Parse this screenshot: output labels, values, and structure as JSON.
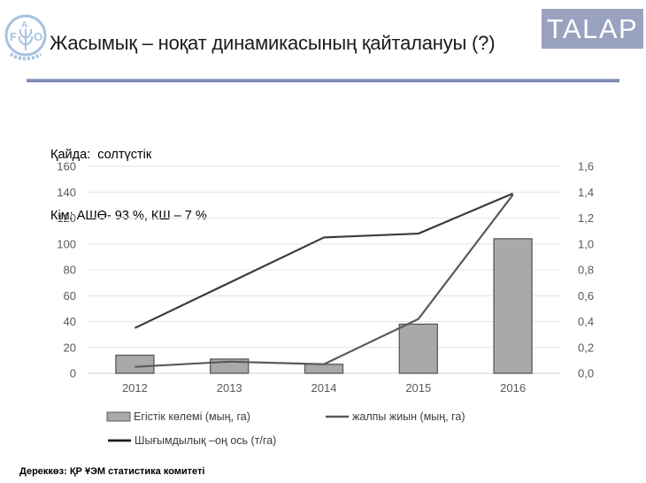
{
  "header": {
    "title": "Жасымық – ноқат динамикасының қайталануы (?)",
    "badge_label": "TALAP",
    "badge_color": "#99a3c0",
    "divider_color": "#7482b4"
  },
  "subtitle": {
    "line1": "Қайда:  солтүстік",
    "line2": "Кім: АШӨ- 93 %, КШ – 7 %"
  },
  "chart_data": {
    "type": "combo-bar-line",
    "categories": [
      "2012",
      "2013",
      "2014",
      "2015",
      "2016"
    ],
    "series": [
      {
        "name": "Егістік көлемі (мың, га)",
        "type": "bar",
        "axis": "left",
        "values": [
          14,
          11,
          7,
          38,
          104
        ],
        "color": "#aba8a8",
        "border_color": "#595959"
      },
      {
        "name": "жалпы жиын (мың, га)",
        "type": "line",
        "axis": "left",
        "values": [
          5,
          9,
          7,
          42,
          138
        ],
        "color": "#595959"
      },
      {
        "name": "Шығымдылық –оң ось (т/га)",
        "type": "line",
        "axis": "right",
        "values": [
          0.35,
          0.7,
          1.05,
          1.08,
          1.39
        ],
        "color": "#3b3b3b"
      }
    ],
    "left_axis": {
      "min": 0,
      "max": 160,
      "step": 20,
      "ticks": [
        "0",
        "20",
        "40",
        "60",
        "80",
        "100",
        "120",
        "140",
        "160"
      ]
    },
    "right_axis": {
      "min": 0,
      "max": 1.6,
      "step": 0.2,
      "ticks": [
        "0,0",
        "0,2",
        "0,4",
        "0,6",
        "0,8",
        "1,0",
        "1,2",
        "1,4",
        "1,6"
      ]
    },
    "grid": true,
    "legend_position": "bottom"
  },
  "footer": {
    "source": "Дереккөз: ҚР ҰЭМ статистика комитеті"
  }
}
